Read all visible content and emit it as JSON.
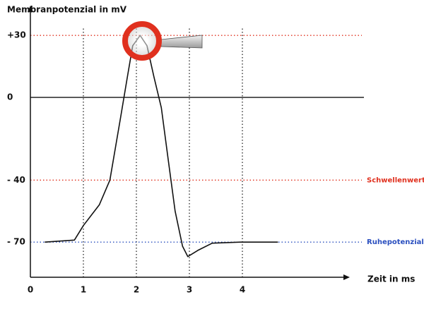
{
  "chart_data": {
    "type": "line",
    "title": "Membranpotenzial in mV",
    "x_label": "Zeit in ms",
    "x": [
      0.27,
      0.83,
      1.0,
      1.3,
      1.5,
      1.7,
      1.83,
      1.93,
      2.07,
      2.2,
      2.33,
      2.47,
      2.6,
      2.73,
      2.87,
      2.97,
      3.16,
      3.43,
      3.96,
      4.67
    ],
    "series": [
      {
        "color": "#111111",
        "values": [
          -70,
          -69,
          -62,
          -52,
          -40,
          -10,
          10,
          25,
          30,
          25,
          10,
          -5,
          -30,
          -55,
          -72,
          -77,
          -74,
          -70.5,
          -70,
          -70
        ]
      }
    ],
    "xlim": [
      0,
      6
    ],
    "xticks": [
      0,
      1,
      2,
      3,
      4
    ],
    "ylim": [
      -87,
      42
    ],
    "yticks": [
      {
        "value": 30,
        "label": "+30"
      },
      0,
      {
        "value": -40,
        "label": "- 40"
      },
      {
        "value": -70,
        "label": "- 70"
      }
    ],
    "grid": true,
    "reference_lines": [
      {
        "value": 30,
        "color": "#e0301e"
      },
      {
        "value": 0,
        "color": "#111111"
      },
      {
        "value": -40,
        "color": "#e0301e",
        "label": "Schwellenwert"
      },
      {
        "value": -70,
        "color": "#2a4fbf",
        "label": "Ruhepotenzial"
      }
    ]
  }
}
